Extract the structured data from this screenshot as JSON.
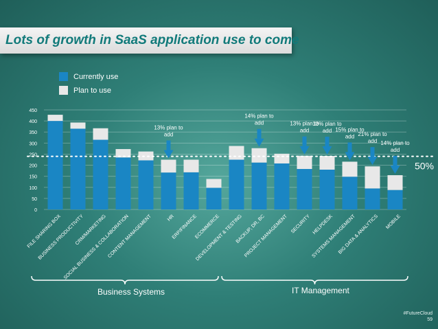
{
  "slide": {
    "title": "Lots of growth in SaaS application use to come",
    "footer_tag": "#FutureCloud",
    "page_number": "59"
  },
  "legend": {
    "current_label": "Currently use",
    "plan_label": "Plan to use"
  },
  "groups": {
    "business": "Business Systems",
    "it": "IT Management"
  },
  "threshold_label": "50%",
  "colors": {
    "current": "#1a86c4",
    "plan": "#e8e8e8",
    "arrow": "#1a86c4",
    "title": "#117a7a"
  },
  "chart_data": {
    "type": "bar",
    "stacked": true,
    "categories": [
      "FILE SHARING BOX",
      "BUSINESS PRODUCTIVITY",
      "CRM/MARKETING",
      "SOCIAL BUSINESS & COLLABORATION",
      "CONTENT MANAGEMENT",
      "HR",
      "ERP/FINANCE",
      "ECOMMERCE",
      "DEVELOPMENT & TESTING",
      "BACKUP, DR, BC",
      "PROJECT MANAGEMENT",
      "SECURITY",
      "HELPDESK",
      "SYSTEMS MANAGEMENT",
      "BIG DATA & ANALYTICS",
      "MOBILE"
    ],
    "series": [
      {
        "name": "Currently use",
        "values": [
          400,
          365,
          315,
          235,
          222,
          167,
          168,
          98,
          225,
          212,
          208,
          183,
          180,
          148,
          95,
          88
        ]
      },
      {
        "name": "Plan to use",
        "values": [
          28,
          28,
          52,
          38,
          40,
          58,
          57,
          40,
          62,
          65,
          44,
          60,
          62,
          68,
          100,
          67
        ]
      }
    ],
    "ylim": [
      0,
      450
    ],
    "yticks": [
      0,
      50,
      100,
      150,
      200,
      250,
      300,
      350,
      400,
      450
    ],
    "threshold_value": 240,
    "annotations": [
      {
        "category_index": 5,
        "lines": [
          "13% plan to",
          "add"
        ]
      },
      {
        "category_index": 9,
        "lines": [
          "14% plan to",
          "add"
        ]
      },
      {
        "category_index": 11,
        "lines": [
          "13% plan to",
          "add"
        ]
      },
      {
        "category_index": 12,
        "lines": [
          "13% plan to",
          "add"
        ]
      },
      {
        "category_index": 13,
        "lines": [
          "15% plan to",
          "add"
        ]
      },
      {
        "category_index": 14,
        "lines": [
          "21% plan to",
          "add"
        ]
      },
      {
        "category_index": 15,
        "lines": [
          "14% plan to",
          "add"
        ]
      }
    ]
  }
}
